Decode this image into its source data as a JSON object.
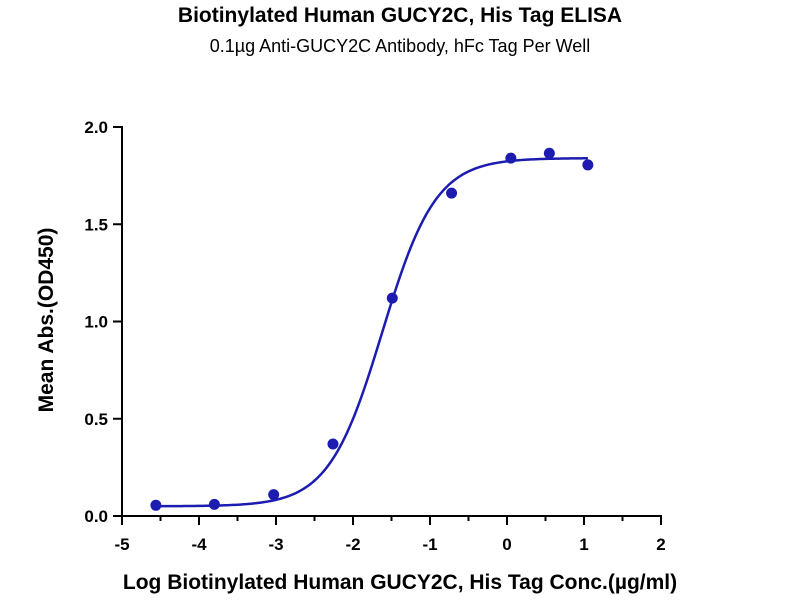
{
  "chart_data": {
    "type": "scatter",
    "title": "Biotinylated Human GUCY2C, His Tag ELISA",
    "subtitle": "0.1µg Anti-GUCY2C Antibody, hFc Tag Per Well",
    "xlabel": "Log Biotinylated Human GUCY2C, His Tag Conc.(µg/ml)",
    "ylabel": "Mean Abs.(OD450)",
    "xlim": [
      -5,
      2
    ],
    "ylim": [
      0,
      2.0
    ],
    "x_ticks": [
      "-5",
      "-4",
      "-3",
      "-2",
      "-1",
      "0",
      "1",
      "2"
    ],
    "y_ticks": [
      "0.0",
      "0.5",
      "1.0",
      "1.5",
      "2.0"
    ],
    "grid": false,
    "series": [
      {
        "x": [
          -4.56,
          -3.8,
          -3.03,
          -2.26,
          -1.49,
          -0.72,
          0.05,
          0.55,
          1.05
        ],
        "y": [
          0.055,
          0.06,
          0.11,
          0.37,
          1.12,
          1.66,
          1.84,
          1.865,
          1.805
        ],
        "color": "#1c1cb0",
        "fit": "four-parameter logistic"
      }
    ]
  }
}
